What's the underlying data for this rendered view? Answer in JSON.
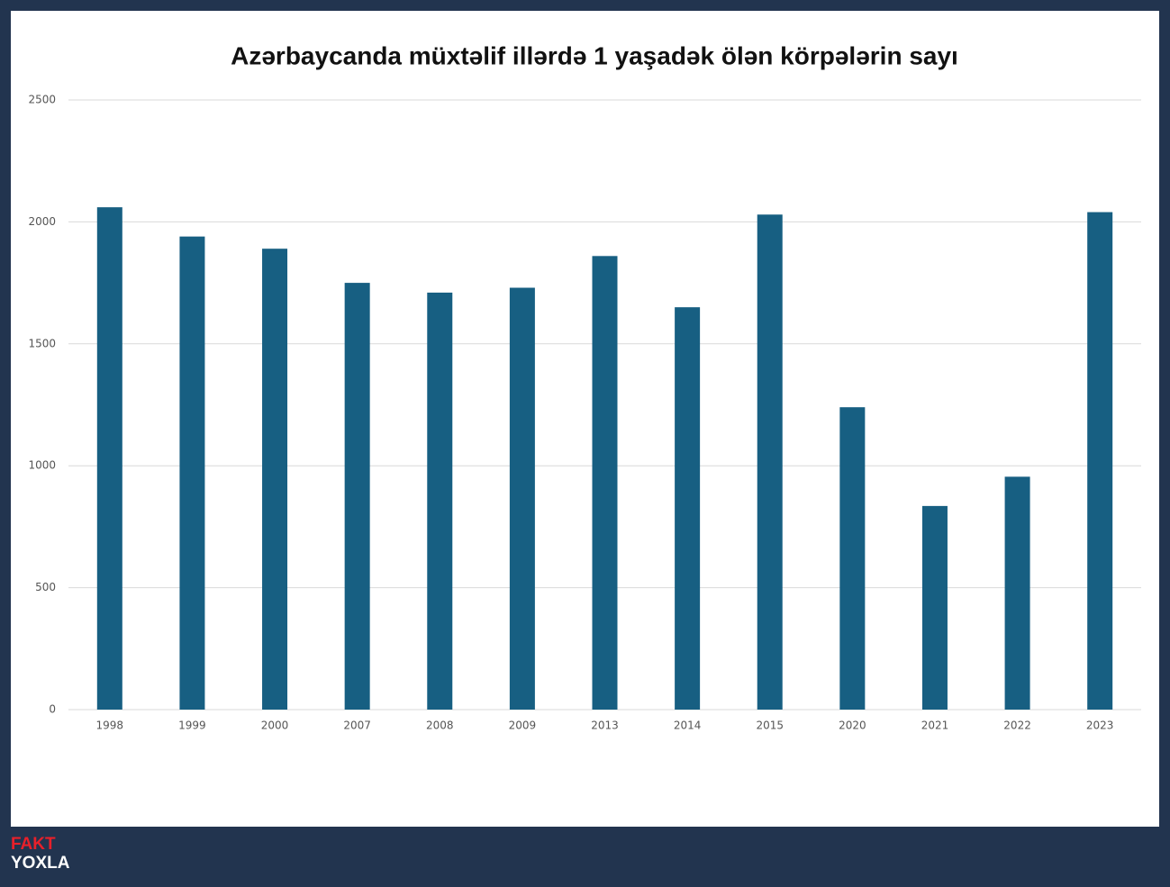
{
  "chart_data": {
    "type": "bar",
    "title": "Azərbaycanda müxtəlif illərdə 1 yaşadək ölən körpələrin sayı",
    "categories": [
      "1998",
      "1999",
      "2000",
      "2007",
      "2008",
      "2009",
      "2013",
      "2014",
      "2015",
      "2020",
      "2021",
      "2022",
      "2023"
    ],
    "values": [
      2060,
      1940,
      1890,
      1750,
      1710,
      1730,
      1860,
      1650,
      2030,
      1240,
      835,
      955,
      2040
    ],
    "color": "#175f82",
    "ylim": [
      0,
      2500
    ],
    "yticks": [
      0,
      500,
      1000,
      1500,
      2000,
      2500
    ],
    "grid": true
  },
  "branding": {
    "line1": "FAKT",
    "line2": "YOXLA"
  }
}
